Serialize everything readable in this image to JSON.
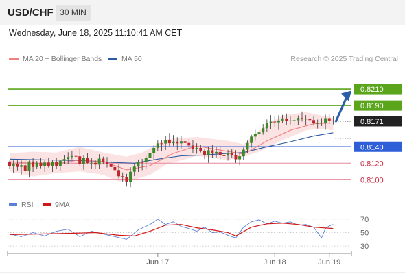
{
  "header": {
    "pair": "USD/CHF",
    "timeframe": "30 MIN"
  },
  "subtitle": "Wednesday, June 18, 2025 11:10:41 AM CET",
  "legend": [
    {
      "label": "MA 20 + Bollinger Bands",
      "color": "#f08080"
    },
    {
      "label": "MA 50",
      "color": "#2c5aa0"
    }
  ],
  "credit": "Research © 2025 Trading Central",
  "rsi_legend": [
    {
      "label": "RSI",
      "color": "#5b7fd6"
    },
    {
      "label": "9MA",
      "color": "#d01818"
    }
  ],
  "colors": {
    "resistance": "#5aa51c",
    "support": "#2e5fd8",
    "support_light": "#e8879a",
    "current": "#222222",
    "arrow": "#2a5fa8",
    "bull": "#3a8a2a",
    "bear": "#c0262e"
  },
  "chart_data": [
    {
      "type": "candlestick",
      "title": "USD/CHF",
      "ylim": [
        0.8087,
        0.8235
      ],
      "x_ticks": [
        "Jun 17",
        "Jun 18",
        "Jun 19"
      ],
      "levels": [
        {
          "label": "0.8210",
          "value": 0.821,
          "kind": "resistance"
        },
        {
          "label": "0.8190",
          "value": 0.819,
          "kind": "resistance"
        },
        {
          "label": "0.8171",
          "value": 0.8171,
          "kind": "current"
        },
        {
          "label": "0.8140",
          "value": 0.814,
          "kind": "support"
        },
        {
          "label": "0.8120",
          "value": 0.812,
          "kind": "support_light"
        },
        {
          "label": "0.8100",
          "value": 0.81,
          "kind": "support_light"
        }
      ],
      "projection": {
        "from": 0.8171,
        "to": 0.8208
      },
      "candles": [
        [
          0.81218,
          0.81232,
          0.8113,
          0.81162
        ],
        [
          0.81162,
          0.81233,
          0.8108,
          0.81188
        ],
        [
          0.81188,
          0.81234,
          0.81113,
          0.81156
        ],
        [
          0.81156,
          0.81233,
          0.8106,
          0.81175
        ],
        [
          0.81175,
          0.81234,
          0.81091,
          0.81104
        ],
        [
          0.81104,
          0.81233,
          0.81027,
          0.81221
        ],
        [
          0.81221,
          0.81263,
          0.81095,
          0.81154
        ],
        [
          0.81154,
          0.81227,
          0.81128,
          0.81206
        ],
        [
          0.81206,
          0.81268,
          0.81139,
          0.81163
        ],
        [
          0.81163,
          0.81234,
          0.81097,
          0.81209
        ],
        [
          0.81209,
          0.81263,
          0.81148,
          0.81165
        ],
        [
          0.81165,
          0.81235,
          0.81095,
          0.8122
        ],
        [
          0.8122,
          0.81268,
          0.81135,
          0.81164
        ],
        [
          0.81164,
          0.81236,
          0.81106,
          0.81229
        ],
        [
          0.81229,
          0.81297,
          0.81191,
          0.81251
        ],
        [
          0.81251,
          0.81333,
          0.8119,
          0.81276
        ],
        [
          0.81276,
          0.81351,
          0.81247,
          0.81288
        ],
        [
          0.81288,
          0.81348,
          0.8123,
          0.81284
        ],
        [
          0.81284,
          0.81371,
          0.81172,
          0.81186
        ],
        [
          0.81186,
          0.813,
          0.81122,
          0.81266
        ],
        [
          0.81266,
          0.81323,
          0.81196,
          0.81203
        ],
        [
          0.81203,
          0.81266,
          0.81132,
          0.81205
        ],
        [
          0.81205,
          0.81237,
          0.81127,
          0.81184
        ],
        [
          0.81184,
          0.81309,
          0.81129,
          0.81256
        ],
        [
          0.81256,
          0.8128,
          0.81192,
          0.81219
        ],
        [
          0.81219,
          0.81275,
          0.81148,
          0.81191
        ],
        [
          0.81191,
          0.81229,
          0.8112,
          0.81154
        ],
        [
          0.81154,
          0.81218,
          0.81075,
          0.81117
        ],
        [
          0.81117,
          0.8119,
          0.81014,
          0.81042
        ],
        [
          0.81042,
          0.81089,
          0.80974,
          0.81035
        ],
        [
          0.81035,
          0.81072,
          0.80918,
          0.80978
        ],
        [
          0.80978,
          0.81152,
          0.80909,
          0.81097
        ],
        [
          0.81097,
          0.812,
          0.81045,
          0.81159
        ],
        [
          0.81159,
          0.81245,
          0.81095,
          0.81213
        ],
        [
          0.81213,
          0.81253,
          0.81116,
          0.81211
        ],
        [
          0.81211,
          0.81291,
          0.81127,
          0.81263
        ],
        [
          0.81263,
          0.81333,
          0.81216,
          0.8132
        ],
        [
          0.8132,
          0.81424,
          0.81241,
          0.81386
        ],
        [
          0.81386,
          0.81481,
          0.8135,
          0.81441
        ],
        [
          0.81441,
          0.81484,
          0.81348,
          0.81439
        ],
        [
          0.81439,
          0.81536,
          0.8136,
          0.81477
        ],
        [
          0.81477,
          0.81567,
          0.81408,
          0.81443
        ],
        [
          0.81443,
          0.81542,
          0.81412,
          0.81462
        ],
        [
          0.81462,
          0.81516,
          0.8136,
          0.81441
        ],
        [
          0.81441,
          0.81535,
          0.81379,
          0.81467
        ],
        [
          0.81467,
          0.81519,
          0.81418,
          0.81446
        ],
        [
          0.81446,
          0.81494,
          0.81372,
          0.81415
        ],
        [
          0.81415,
          0.81482,
          0.8132,
          0.81372
        ],
        [
          0.81372,
          0.81442,
          0.81315,
          0.81386
        ],
        [
          0.81386,
          0.81425,
          0.81331,
          0.81347
        ],
        [
          0.81347,
          0.81378,
          0.8125,
          0.81303
        ],
        [
          0.81303,
          0.81405,
          0.81205,
          0.81357
        ],
        [
          0.81357,
          0.8142,
          0.81264,
          0.81318
        ],
        [
          0.81318,
          0.81403,
          0.81261,
          0.81337
        ],
        [
          0.81337,
          0.81413,
          0.81234,
          0.81295
        ],
        [
          0.81295,
          0.8136,
          0.81238,
          0.81293
        ],
        [
          0.81293,
          0.81363,
          0.81232,
          0.81325
        ],
        [
          0.81325,
          0.81374,
          0.81265,
          0.81298
        ],
        [
          0.81298,
          0.81359,
          0.81204,
          0.81248
        ],
        [
          0.81248,
          0.81317,
          0.81174,
          0.81285
        ],
        [
          0.81285,
          0.81391,
          0.81239,
          0.81364
        ],
        [
          0.81364,
          0.81475,
          0.8132,
          0.81446
        ],
        [
          0.81446,
          0.81547,
          0.81389,
          0.81524
        ],
        [
          0.81524,
          0.81606,
          0.81473,
          0.81559
        ],
        [
          0.81559,
          0.81625,
          0.81463,
          0.81575
        ],
        [
          0.81575,
          0.81676,
          0.81547,
          0.81625
        ],
        [
          0.81625,
          0.81731,
          0.81581,
          0.81693
        ],
        [
          0.81693,
          0.81784,
          0.81615,
          0.81706
        ],
        [
          0.81706,
          0.8177,
          0.81637,
          0.81697
        ],
        [
          0.81697,
          0.81783,
          0.81604,
          0.81719
        ],
        [
          0.81719,
          0.81787,
          0.81693,
          0.81744
        ],
        [
          0.81744,
          0.81804,
          0.81666,
          0.81712
        ],
        [
          0.81712,
          0.81774,
          0.8167,
          0.81719
        ],
        [
          0.81719,
          0.81793,
          0.81664,
          0.81723
        ],
        [
          0.81723,
          0.8178,
          0.81667,
          0.81749
        ],
        [
          0.81749,
          0.81828,
          0.81707,
          0.8174
        ],
        [
          0.8174,
          0.81784,
          0.81664,
          0.81741
        ],
        [
          0.81741,
          0.81795,
          0.81698,
          0.81724
        ],
        [
          0.81724,
          0.81771,
          0.81658,
          0.81688
        ],
        [
          0.81688,
          0.8173,
          0.81622,
          0.81689
        ],
        [
          0.81689,
          0.81748,
          0.81653,
          0.81692
        ],
        [
          0.81692,
          0.81791,
          0.81606,
          0.81747
        ],
        [
          0.81747,
          0.81795,
          0.81678,
          0.81719
        ],
        [
          0.81719,
          0.81768,
          0.81671,
          0.8171
        ]
      ],
      "ma20": [
        [
          0,
          0.8122
        ],
        [
          10,
          0.8118
        ],
        [
          18,
          0.8124
        ],
        [
          24,
          0.8122
        ],
        [
          30,
          0.8112
        ],
        [
          36,
          0.8117
        ],
        [
          42,
          0.8132
        ],
        [
          48,
          0.8141
        ],
        [
          54,
          0.8136
        ],
        [
          60,
          0.8131
        ],
        [
          66,
          0.8147
        ],
        [
          72,
          0.816
        ],
        [
          78,
          0.8168
        ],
        [
          83,
          0.8169
        ]
      ],
      "bollinger_upper": [
        [
          0,
          0.8132
        ],
        [
          6,
          0.8134
        ],
        [
          12,
          0.8133
        ],
        [
          18,
          0.814
        ],
        [
          24,
          0.8133
        ],
        [
          30,
          0.8128
        ],
        [
          34,
          0.8133
        ],
        [
          40,
          0.8149
        ],
        [
          48,
          0.8152
        ],
        [
          56,
          0.8147
        ],
        [
          60,
          0.8143
        ],
        [
          64,
          0.816
        ],
        [
          70,
          0.8178
        ],
        [
          76,
          0.8182
        ],
        [
          80,
          0.8178
        ],
        [
          83,
          0.8175
        ]
      ],
      "bollinger_lower": [
        [
          0,
          0.811
        ],
        [
          6,
          0.8104
        ],
        [
          12,
          0.8108
        ],
        [
          18,
          0.811
        ],
        [
          24,
          0.8106
        ],
        [
          28,
          0.8098
        ],
        [
          32,
          0.81
        ],
        [
          36,
          0.8106
        ],
        [
          40,
          0.8118
        ],
        [
          48,
          0.8129
        ],
        [
          56,
          0.8124
        ],
        [
          60,
          0.8128
        ],
        [
          64,
          0.8134
        ],
        [
          70,
          0.8148
        ],
        [
          76,
          0.816
        ],
        [
          80,
          0.8162
        ],
        [
          83,
          0.816
        ]
      ],
      "ma50": [
        [
          0,
          0.8125
        ],
        [
          10,
          0.8124
        ],
        [
          20,
          0.8123
        ],
        [
          26,
          0.8121
        ],
        [
          32,
          0.812
        ],
        [
          38,
          0.8125
        ],
        [
          44,
          0.8129
        ],
        [
          50,
          0.813
        ],
        [
          56,
          0.8132
        ],
        [
          60,
          0.8133
        ],
        [
          66,
          0.814
        ],
        [
          72,
          0.8146
        ],
        [
          78,
          0.8153
        ],
        [
          83,
          0.8157
        ]
      ]
    },
    {
      "type": "line",
      "title": "RSI",
      "ylim": [
        25,
        75
      ],
      "y_ticks": [
        70,
        50,
        30
      ],
      "series": [
        {
          "name": "RSI",
          "values": [
            [
              0,
              48
            ],
            [
              3,
              44
            ],
            [
              6,
              50
            ],
            [
              9,
              45
            ],
            [
              12,
              52
            ],
            [
              15,
              55
            ],
            [
              18,
              44
            ],
            [
              21,
              52
            ],
            [
              24,
              48
            ],
            [
              27,
              44
            ],
            [
              30,
              40
            ],
            [
              33,
              54
            ],
            [
              36,
              62
            ],
            [
              38,
              70
            ],
            [
              40,
              62
            ],
            [
              42,
              66
            ],
            [
              44,
              59
            ],
            [
              46,
              56
            ],
            [
              48,
              52
            ],
            [
              50,
              58
            ],
            [
              52,
              50
            ],
            [
              54,
              51
            ],
            [
              56,
              46
            ],
            [
              58,
              42
            ],
            [
              60,
              58
            ],
            [
              62,
              66
            ],
            [
              64,
              69
            ],
            [
              66,
              63
            ],
            [
              68,
              67
            ],
            [
              70,
              64
            ],
            [
              72,
              66
            ],
            [
              74,
              61
            ],
            [
              76,
              62
            ],
            [
              78,
              58
            ],
            [
              80,
              42
            ],
            [
              81,
              56
            ],
            [
              82,
              60
            ],
            [
              83,
              62
            ]
          ]
        },
        {
          "name": "9MA",
          "values": [
            [
              0,
              47
            ],
            [
              8,
              48
            ],
            [
              16,
              49
            ],
            [
              22,
              50
            ],
            [
              28,
              46
            ],
            [
              32,
              45
            ],
            [
              36,
              52
            ],
            [
              40,
              61
            ],
            [
              44,
              62
            ],
            [
              48,
              57
            ],
            [
              52,
              54
            ],
            [
              56,
              50
            ],
            [
              58,
              45
            ],
            [
              62,
              58
            ],
            [
              66,
              63
            ],
            [
              70,
              64
            ],
            [
              74,
              62
            ],
            [
              78,
              58
            ],
            [
              83,
              56
            ]
          ]
        }
      ]
    }
  ]
}
